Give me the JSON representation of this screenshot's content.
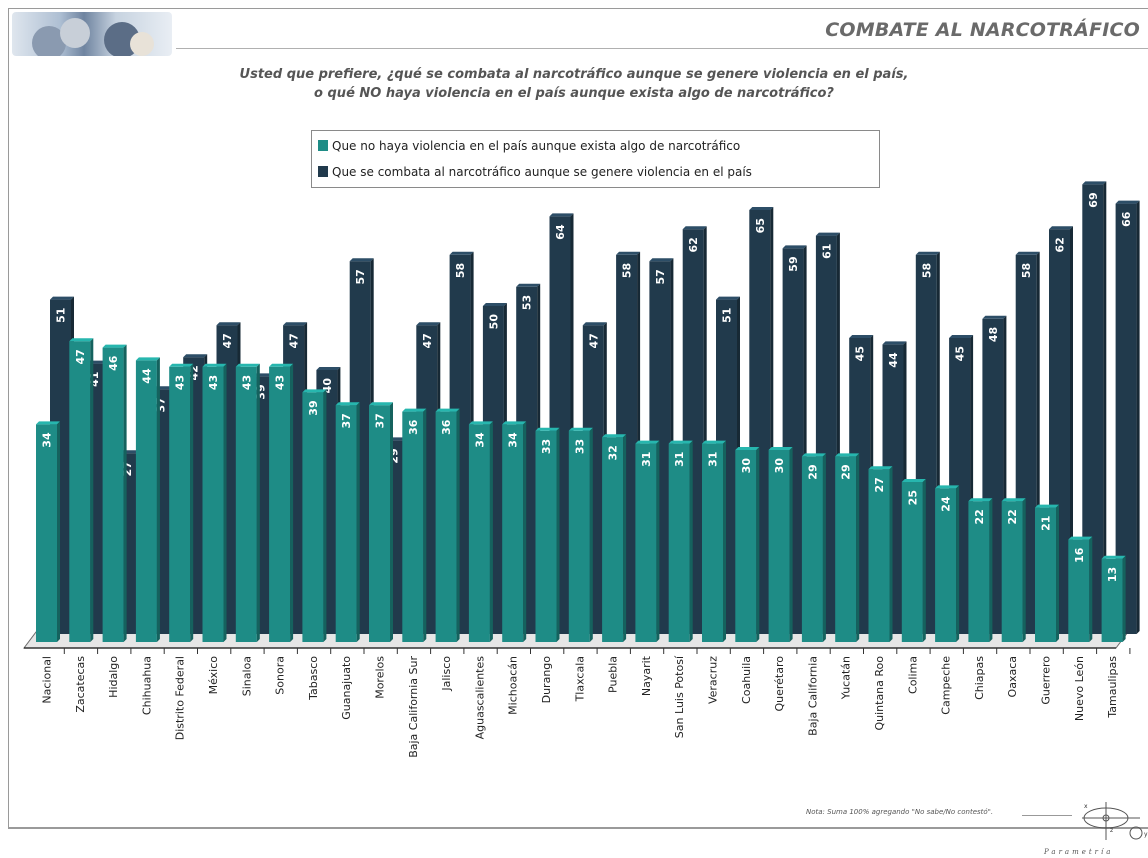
{
  "header": {
    "title": "COMBATE AL NARCOTRÁFICO"
  },
  "question": {
    "line1": "Usted que prefiere, ¿qué se combata al narcotráfico aunque se genere violencia en el país,",
    "line2": "o qué NO haya violencia en el país aunque exista algo de narcotráfico?"
  },
  "legend": [
    {
      "label": "Que no haya violencia en el país aunque exista algo de narcotráfico",
      "color": "#1e8c86"
    },
    {
      "label": "Que se combata al narcotráfico aunque se genere violencia en el país",
      "color": "#213a4c"
    }
  ],
  "chart_data": {
    "type": "bar",
    "categories": [
      "Nacional",
      "Zacatecas",
      "Hidalgo",
      "Chihuahua",
      "Distrito Federal",
      "México",
      "Sinaloa",
      "Sonora",
      "Tabasco",
      "Guanajuato",
      "Morelos",
      "Baja California Sur",
      "Jalisco",
      "Aguascalientes",
      "Michoacán",
      "Durango",
      "Tlaxcala",
      "Puebla",
      "Nayarit",
      "San Luis Potosí",
      "Veracruz",
      "Coahuila",
      "Querétaro",
      "Baja California",
      "Yucatán",
      "Quintana Roo",
      "Colima",
      "Campeche",
      "Chiapas",
      "Oaxaca",
      "Guerrero",
      "Nuevo León",
      "Tamaulipas"
    ],
    "series": [
      {
        "name": "Que no haya violencia en el país aunque exista algo de narcotráfico",
        "color": "#1e8c86",
        "values": [
          34,
          47,
          46,
          44,
          43,
          43,
          43,
          43,
          39,
          37,
          37,
          36,
          36,
          34,
          34,
          33,
          33,
          32,
          31,
          31,
          31,
          30,
          30,
          29,
          29,
          27,
          25,
          24,
          22,
          22,
          21,
          16,
          13
        ]
      },
      {
        "name": "Que se combata al narcotráfico aunque se genere violencia en el país",
        "color": "#213a4c",
        "values": [
          51,
          41,
          27,
          37,
          42,
          47,
          39,
          47,
          40,
          57,
          29,
          47,
          58,
          50,
          53,
          64,
          47,
          58,
          57,
          62,
          51,
          65,
          59,
          61,
          45,
          44,
          58,
          45,
          48,
          58,
          62,
          69,
          66
        ]
      }
    ],
    "ylim": [
      0,
      75
    ],
    "grid": false,
    "legend_position": "top-center"
  },
  "footer": {
    "note": "Nota: Suma 100% agregando \"No sabe/No contestó\".",
    "brand": "Parametría"
  }
}
